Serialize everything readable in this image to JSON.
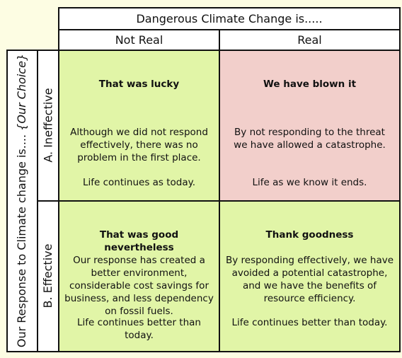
{
  "header": {
    "title": "Dangerous Climate Change is.....",
    "columns": [
      "Not Real",
      "Real"
    ]
  },
  "side": {
    "title": "Our Response to Climate change is....",
    "title_italic": "{Our Choice}",
    "rows": [
      "A. Ineffective",
      "B. Effective"
    ]
  },
  "cells": [
    [
      {
        "heading": "That was lucky",
        "body": "Although we did not respond effectively, there was no problem in the first place.",
        "outcome": "Life continues as today."
      },
      {
        "heading": "We have blown it",
        "body": "By not responding to the threat we have allowed a catastrophe.",
        "outcome": "Life as we know it ends."
      }
    ],
    [
      {
        "heading": "That was good nevertheless",
        "body": "Our response has created a better environment, considerable cost savings for business, and less dependency on fossil fuels.",
        "outcome": "Life continues better than today."
      },
      {
        "heading": "Thank goodness",
        "body": "By responding effectively, we have avoided a potential catastrophe, and we have the benefits of resource efficiency.",
        "outcome": "Life continues better than today."
      }
    ]
  ]
}
